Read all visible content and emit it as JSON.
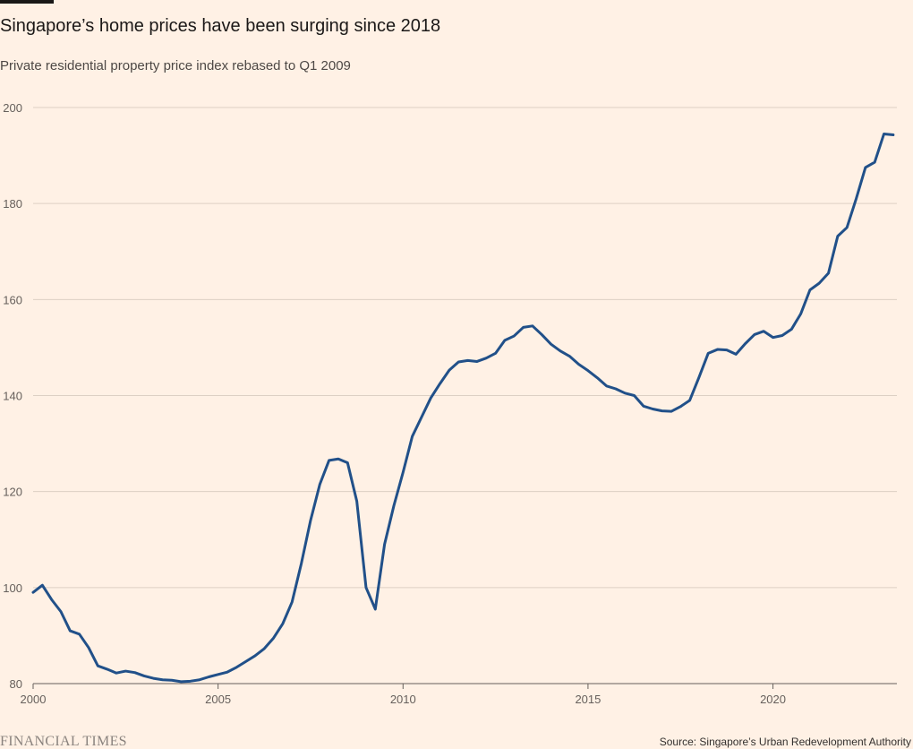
{
  "chart_data": {
    "type": "line",
    "title": "Singapore’s home prices have been surging since 2018",
    "subtitle": "Private residential property price index rebased to Q1 2009",
    "source": "Source: Singapore’s Urban Redevelopment Authority",
    "brand": "FINANCIAL TIMES",
    "x": [
      2000,
      2000.25,
      2000.5,
      2000.75,
      2001,
      2001.25,
      2001.5,
      2001.75,
      2002,
      2002.25,
      2002.5,
      2002.75,
      2003,
      2003.25,
      2003.5,
      2003.75,
      2004,
      2004.25,
      2004.5,
      2004.75,
      2005,
      2005.25,
      2005.5,
      2005.75,
      2006,
      2006.25,
      2006.5,
      2006.75,
      2007,
      2007.25,
      2007.5,
      2007.75,
      2008,
      2008.25,
      2008.5,
      2008.75,
      2009,
      2009.25,
      2009.5,
      2009.75,
      2010,
      2010.25,
      2010.5,
      2010.75,
      2011,
      2011.25,
      2011.5,
      2011.75,
      2012,
      2012.25,
      2012.5,
      2012.75,
      2013,
      2013.25,
      2013.5,
      2013.75,
      2014,
      2014.25,
      2014.5,
      2014.75,
      2015,
      2015.25,
      2015.5,
      2015.75,
      2016,
      2016.25,
      2016.5,
      2016.75,
      2017,
      2017.25,
      2017.5,
      2017.75,
      2018,
      2018.25,
      2018.5,
      2018.75,
      2019,
      2019.25,
      2019.5,
      2019.75,
      2020,
      2020.25,
      2020.5,
      2020.75,
      2021,
      2021.25,
      2021.5,
      2021.75,
      2022,
      2022.25,
      2022.5,
      2022.75,
      2023,
      2023.25
    ],
    "series": [
      {
        "name": "Private residential property price index",
        "color": "#215089",
        "values": [
          99,
          100.5,
          97.5,
          95,
          91,
          90.3,
          87.5,
          83.7,
          83,
          82.2,
          82.6,
          82.3,
          81.6,
          81.1,
          80.8,
          80.7,
          80.4,
          80.5,
          80.8,
          81.4,
          81.9,
          82.4,
          83.4,
          84.6,
          85.8,
          87.3,
          89.5,
          92.5,
          97,
          105,
          114,
          121.5,
          126.5,
          126.8,
          126,
          118,
          100,
          95.5,
          109,
          117,
          124,
          131.5,
          135.5,
          139.5,
          142.5,
          145.3,
          147,
          147.3,
          147.1,
          147.8,
          148.8,
          151.5,
          152.4,
          154.2,
          154.5,
          152.7,
          150.7,
          149.3,
          148.2,
          146.5,
          145.2,
          143.7,
          142,
          141.4,
          140.5,
          140,
          137.8,
          137.2,
          136.8,
          136.7,
          137.7,
          139,
          143.8,
          148.8,
          149.6,
          149.5,
          148.6,
          150.8,
          152.7,
          153.4,
          152.1,
          152.5,
          153.8,
          157,
          162,
          163.4,
          165.5,
          173.2,
          175,
          181,
          187.5,
          188.6,
          194.5,
          194.3
        ]
      }
    ],
    "xlim": [
      2000,
      2023.35
    ],
    "xticks": [
      2000,
      2005,
      2010,
      2015,
      2020
    ],
    "ylim": [
      80,
      200
    ],
    "yticks": [
      80,
      100,
      120,
      140,
      160,
      180,
      200
    ],
    "grid": true
  }
}
